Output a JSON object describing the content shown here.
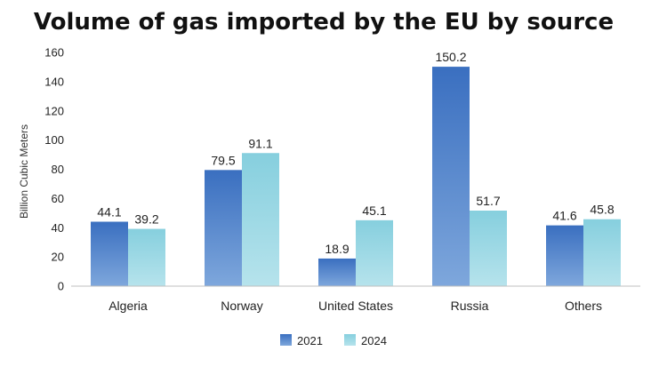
{
  "chart_data": {
    "type": "bar",
    "title": "Volume of gas imported by the EU by source",
    "ylabel": "Billion Cubic Meters",
    "xlabel": "",
    "categories": [
      "Algeria",
      "Norway",
      "United States",
      "Russia",
      "Others"
    ],
    "series": [
      {
        "name": "2021",
        "values": [
          44.1,
          79.5,
          18.9,
          150.2,
          41.6
        ],
        "value_labels": [
          "44.1",
          "79.5",
          "18.9",
          "150.2",
          "41.6"
        ],
        "color": "#3f74c4"
      },
      {
        "name": "2024",
        "values": [
          39.2,
          91.1,
          45.1,
          51.7,
          45.8
        ],
        "value_labels": [
          "39.2",
          "91.1",
          "45.1",
          "51.7",
          "45.8"
        ],
        "color": "#8fd2e0"
      }
    ],
    "ylim": [
      0,
      160
    ],
    "yticks": [
      0,
      20,
      40,
      60,
      80,
      100,
      120,
      140,
      160
    ],
    "ytick_labels": [
      "0",
      "20",
      "40",
      "60",
      "80",
      "100",
      "120",
      "140",
      "160"
    ],
    "grid": false,
    "legend_position": "bottom"
  }
}
